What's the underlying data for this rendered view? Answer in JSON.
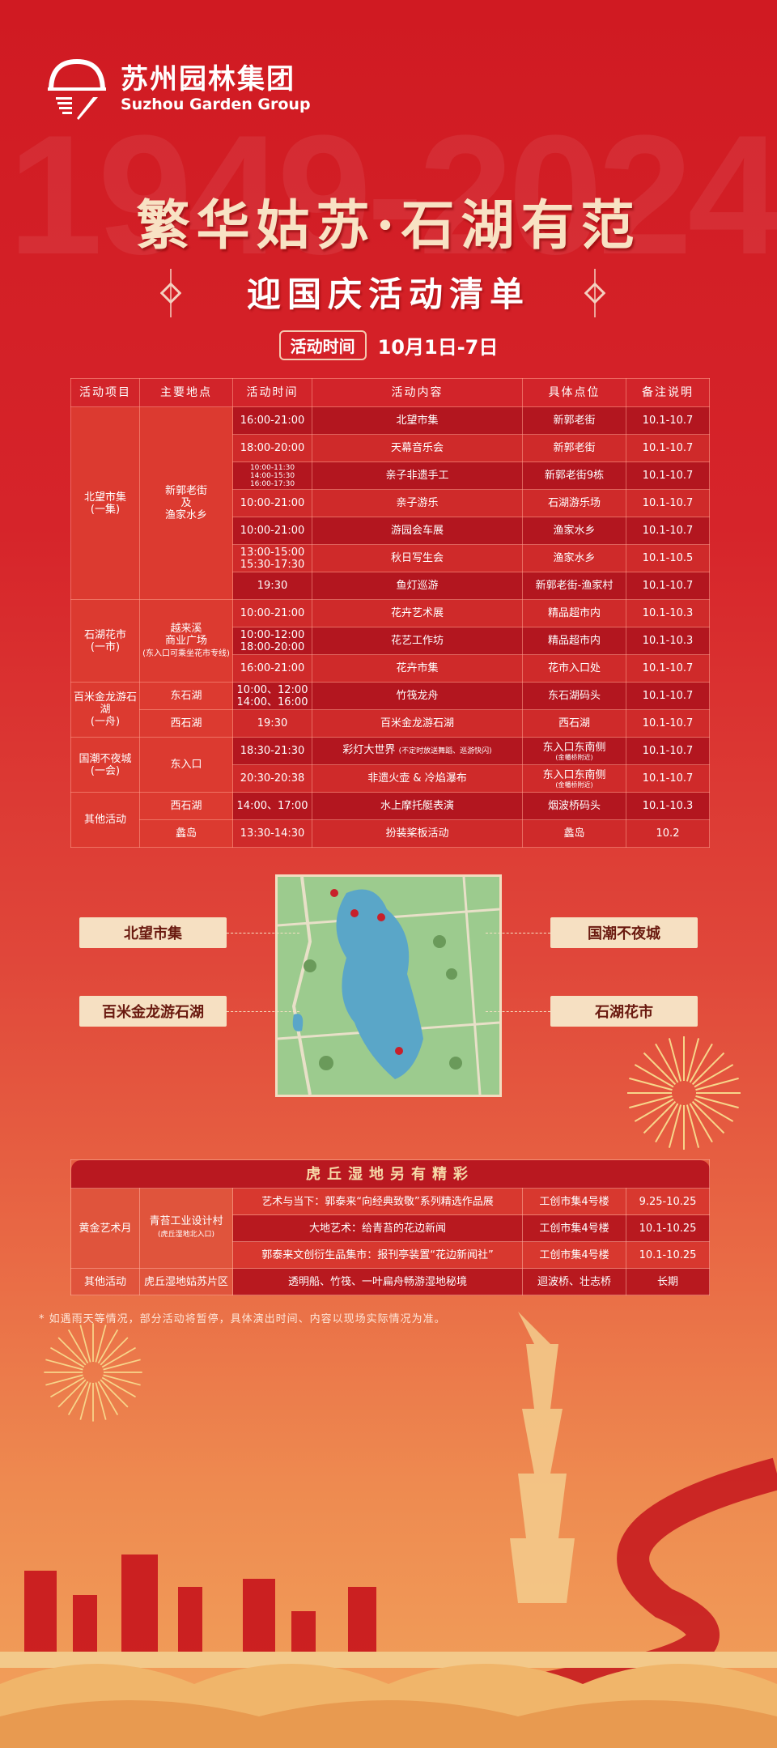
{
  "brand": {
    "cn": "苏州园林集团",
    "en": "Suzhou Garden Group"
  },
  "watermark": "1949-2024",
  "title": "繁华姑苏·石湖有范",
  "subtitle": "迎国庆活动清单",
  "period": {
    "label": "活动时间",
    "value": "10月1日-7日"
  },
  "schedule": {
    "headers": [
      "活动项目",
      "主要地点",
      "活动时间",
      "活动内容",
      "具体点位",
      "备注说明"
    ],
    "groups": [
      {
        "name": "北望市集",
        "sub": "(一集)",
        "locations": [
          {
            "name": "新郭老街",
            "sub": "及",
            "sub2": "渔家水乡",
            "rows": [
              {
                "time": "16:00-21:00",
                "content": "北望市集",
                "spot": "新郭老街",
                "note": "10.1-10.7"
              },
              {
                "time": "18:00-20:00",
                "content": "天幕音乐会",
                "spot": "新郭老街",
                "note": "10.1-10.7"
              },
              {
                "time": "10:00-11:30 14:00-15:30 16:00-17:30",
                "content": "亲子非遗手工",
                "spot": "新郭老街9栋",
                "note": "10.1-10.7"
              },
              {
                "time": "10:00-21:00",
                "content": "亲子游乐",
                "spot": "石湖游乐场",
                "note": "10.1-10.7"
              },
              {
                "time": "10:00-21:00",
                "content": "游园会车展",
                "spot": "渔家水乡",
                "note": "10.1-10.7"
              },
              {
                "time": "13:00-15:00 15:30-17:30",
                "content": "秋日写生会",
                "spot": "渔家水乡",
                "note": "10.1-10.5"
              },
              {
                "time": "19:30",
                "content": "鱼灯巡游",
                "spot": "新郭老街-渔家村",
                "note": "10.1-10.7"
              }
            ]
          }
        ]
      },
      {
        "name": "石湖花市",
        "sub": "(一市)",
        "locations": [
          {
            "name": "越来溪",
            "sub": "商业广场",
            "sub2": "(东入口可乘坐花市专线)",
            "rows": [
              {
                "time": "10:00-21:00",
                "content": "花卉艺术展",
                "spot": "精品超市内",
                "note": "10.1-10.3"
              },
              {
                "time": "10:00-12:00 18:00-20:00",
                "content": "花艺工作坊",
                "spot": "精品超市内",
                "note": "10.1-10.3"
              },
              {
                "time": "16:00-21:00",
                "content": "花卉市集",
                "spot": "花市入口处",
                "note": "10.1-10.7"
              }
            ]
          }
        ]
      },
      {
        "name": "百米金龙游石湖",
        "sub": "(一舟)",
        "locations": [
          {
            "name": "东石湖",
            "rows": [
              {
                "time": "10:00、12:00 14:00、16:00",
                "content": "竹筏龙舟",
                "spot": "东石湖码头",
                "note": "10.1-10.7"
              }
            ]
          },
          {
            "name": "西石湖",
            "rows": [
              {
                "time": "19:30",
                "content": "百米金龙游石湖",
                "spot": "西石湖",
                "note": "10.1-10.7"
              }
            ]
          }
        ]
      },
      {
        "name": "国潮不夜城",
        "sub": "(一会)",
        "locations": [
          {
            "name": "东入口",
            "rows": [
              {
                "time": "18:30-21:30",
                "content": "彩灯大世界",
                "content_note": "(不定时放送舞蹈、巡游快闪)",
                "spot": "东入口东南侧",
                "spot_note": "(金幡桥附近)",
                "note": "10.1-10.7"
              },
              {
                "time": "20:30-20:38",
                "content": "非遗火壶 & 冷焰瀑布",
                "spot": "东入口东南侧",
                "spot_note": "(金幡桥附近)",
                "note": "10.1-10.7"
              }
            ]
          }
        ]
      },
      {
        "name": "其他活动",
        "sub": "",
        "locations": [
          {
            "name": "西石湖",
            "rows": [
              {
                "time": "14:00、17:00",
                "content": "水上摩托艇表演",
                "spot": "烟波桥码头",
                "note": "10.1-10.3"
              }
            ]
          },
          {
            "name": "蠡岛",
            "rows": [
              {
                "time": "13:30-14:30",
                "content": "扮装桨板活动",
                "spot": "蠡岛",
                "note": "10.2"
              }
            ]
          }
        ]
      }
    ]
  },
  "map_labels": [
    "北望市集",
    "百米金龙游石湖",
    "国潮不夜城",
    "石湖花市"
  ],
  "extra": {
    "title": "虎丘湿地另有精彩",
    "g1": {
      "name": "黄金艺术月",
      "loc": "青苔工业设计村",
      "loc_sub": "(虎丘湿地北入口)",
      "rows": [
        {
          "content": "艺术与当下：郭泰来“向经典致敬”系列精选作品展",
          "spot": "工创市集4号楼",
          "note": "9.25-10.25"
        },
        {
          "content": "大地艺术：给青苔的花边新闻",
          "spot": "工创市集4号楼",
          "note": "10.1-10.25"
        },
        {
          "content": "郭泰来文创衍生品集市：报刊亭装置“花边新闻社”",
          "spot": "工创市集4号楼",
          "note": "10.1-10.25"
        }
      ]
    },
    "g2": {
      "name": "其他活动",
      "loc": "虎丘湿地姑苏片区",
      "content": "透明船、竹筏、一叶扁舟畅游湿地秘境",
      "spot": "迴波桥、壮志桥",
      "note": "长期"
    }
  },
  "footnote": "* 如遇雨天等情况，部分活动将暂停，具体演出时间、内容以现场实际情况为准。",
  "colors": {
    "primary_red": "#d01a22",
    "gold": "#f8e2c4",
    "dark_row": "#b3161f"
  }
}
